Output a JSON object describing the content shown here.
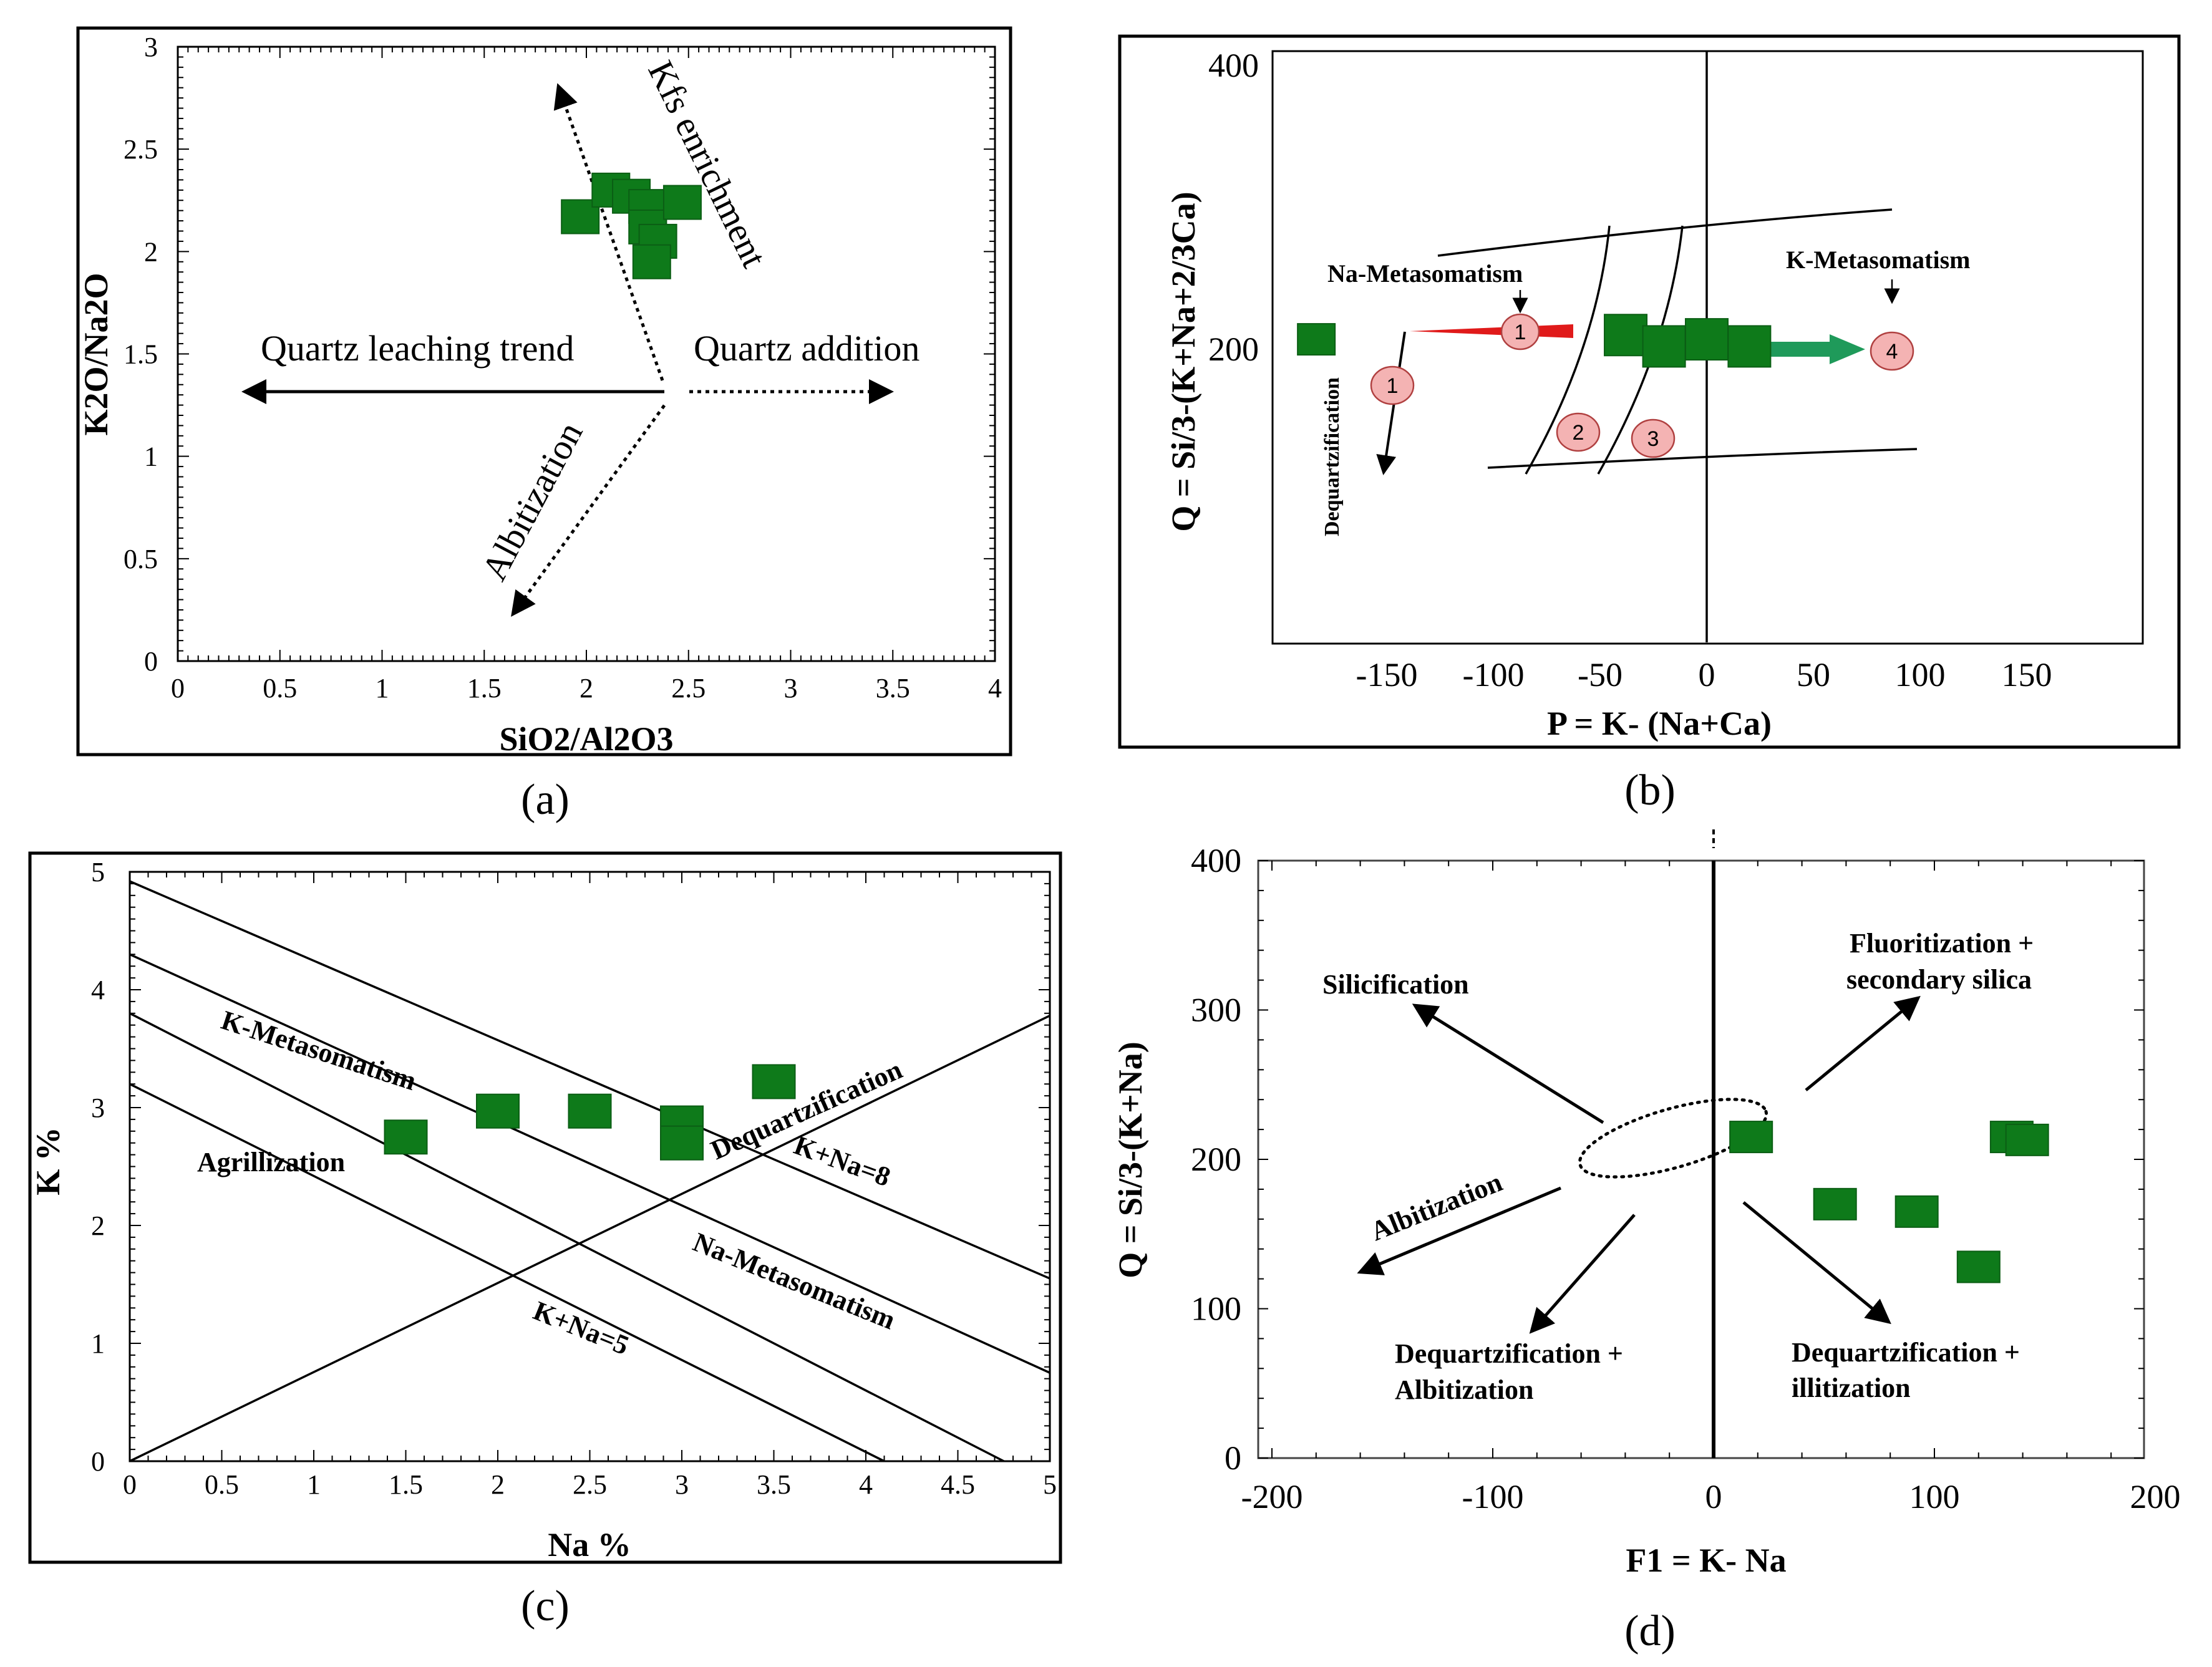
{
  "chart_data": [
    {
      "id": "a",
      "caption": "(a)",
      "type": "scatter",
      "xlabel": "SiO2/Al2O3",
      "ylabel": "K2O/Na2O",
      "xlim": [
        0,
        4
      ],
      "ylim": [
        0,
        3
      ],
      "xticks": [
        "0",
        "0.5",
        "1",
        "1.5",
        "2",
        "2.5",
        "3",
        "3.5",
        "4"
      ],
      "yticks": [
        "0",
        "0.5",
        "1",
        "1.5",
        "2",
        "2.5",
        "3"
      ],
      "points": [
        [
          1.97,
          2.17
        ],
        [
          2.12,
          2.3
        ],
        [
          2.22,
          2.27
        ],
        [
          2.3,
          2.22
        ],
        [
          2.3,
          2.12
        ],
        [
          2.35,
          2.05
        ],
        [
          2.32,
          1.95
        ],
        [
          2.47,
          2.24
        ]
      ],
      "annotations": [
        "Kfs enrichment",
        "Quartz leaching trend",
        "Quartz addition",
        "Albitization"
      ]
    },
    {
      "id": "b",
      "caption": "(b)",
      "type": "scatter",
      "xlabel": "P = K- (Na+Ca)",
      "ylabel": "Q = Si/3-(K+Na+2/3Ca)",
      "xlim": [
        -200,
        200
      ],
      "ylim": [
        0,
        400
      ],
      "xticks": [
        "-150",
        "-100",
        "-50",
        "0",
        "50",
        "100",
        "150"
      ],
      "yticks": [
        "200",
        "400"
      ],
      "points": [
        [
          -183,
          207
        ],
        [
          -38,
          210
        ],
        [
          -20,
          202
        ],
        [
          0,
          207
        ],
        [
          20,
          202
        ]
      ],
      "annotations": [
        "Na-Metasomatism",
        "K-Metasomatism",
        "Dequartzification"
      ],
      "markers": [
        "1",
        "1",
        "2",
        "3",
        "4"
      ]
    },
    {
      "id": "c",
      "caption": "(c)",
      "type": "scatter",
      "xlabel": "Na %",
      "ylabel": "K %",
      "xlim": [
        0,
        5
      ],
      "ylim": [
        0,
        5
      ],
      "xticks": [
        "0",
        "0.5",
        "1",
        "1.5",
        "2",
        "2.5",
        "3",
        "3.5",
        "4",
        "4.5",
        "5"
      ],
      "yticks": [
        "0",
        "1",
        "2",
        "3",
        "4",
        "5"
      ],
      "points": [
        [
          1.5,
          2.75
        ],
        [
          2.0,
          2.97
        ],
        [
          2.5,
          2.97
        ],
        [
          3.0,
          2.87
        ],
        [
          3.0,
          2.7
        ],
        [
          3.5,
          3.22
        ]
      ],
      "annotations": [
        "K-Metasomatism",
        "Agrillization",
        "Dequartzification",
        "K+Na=8",
        "Na-Metasomatism",
        "K+Na=5"
      ]
    },
    {
      "id": "d",
      "caption": "(d)",
      "type": "scatter",
      "xlabel": "F1 = K- Na",
      "ylabel": "Q = Si/3-(K+Na)",
      "xlim": [
        -200,
        200
      ],
      "ylim": [
        0,
        400
      ],
      "xticks": [
        "-200",
        "-100",
        "0",
        "100",
        "200"
      ],
      "yticks": [
        "0",
        "100",
        "200",
        "300",
        "400"
      ],
      "points": [
        [
          17,
          215
        ],
        [
          55,
          170
        ],
        [
          92,
          165
        ],
        [
          120,
          128
        ],
        [
          135,
          215
        ],
        [
          142,
          213
        ]
      ],
      "annotations": [
        "Silicification",
        "Fluoritization +",
        "secondary silica",
        "Albitization",
        "Dequartzification +",
        "Albitization",
        "Dequartzification +",
        "illitization"
      ]
    }
  ]
}
